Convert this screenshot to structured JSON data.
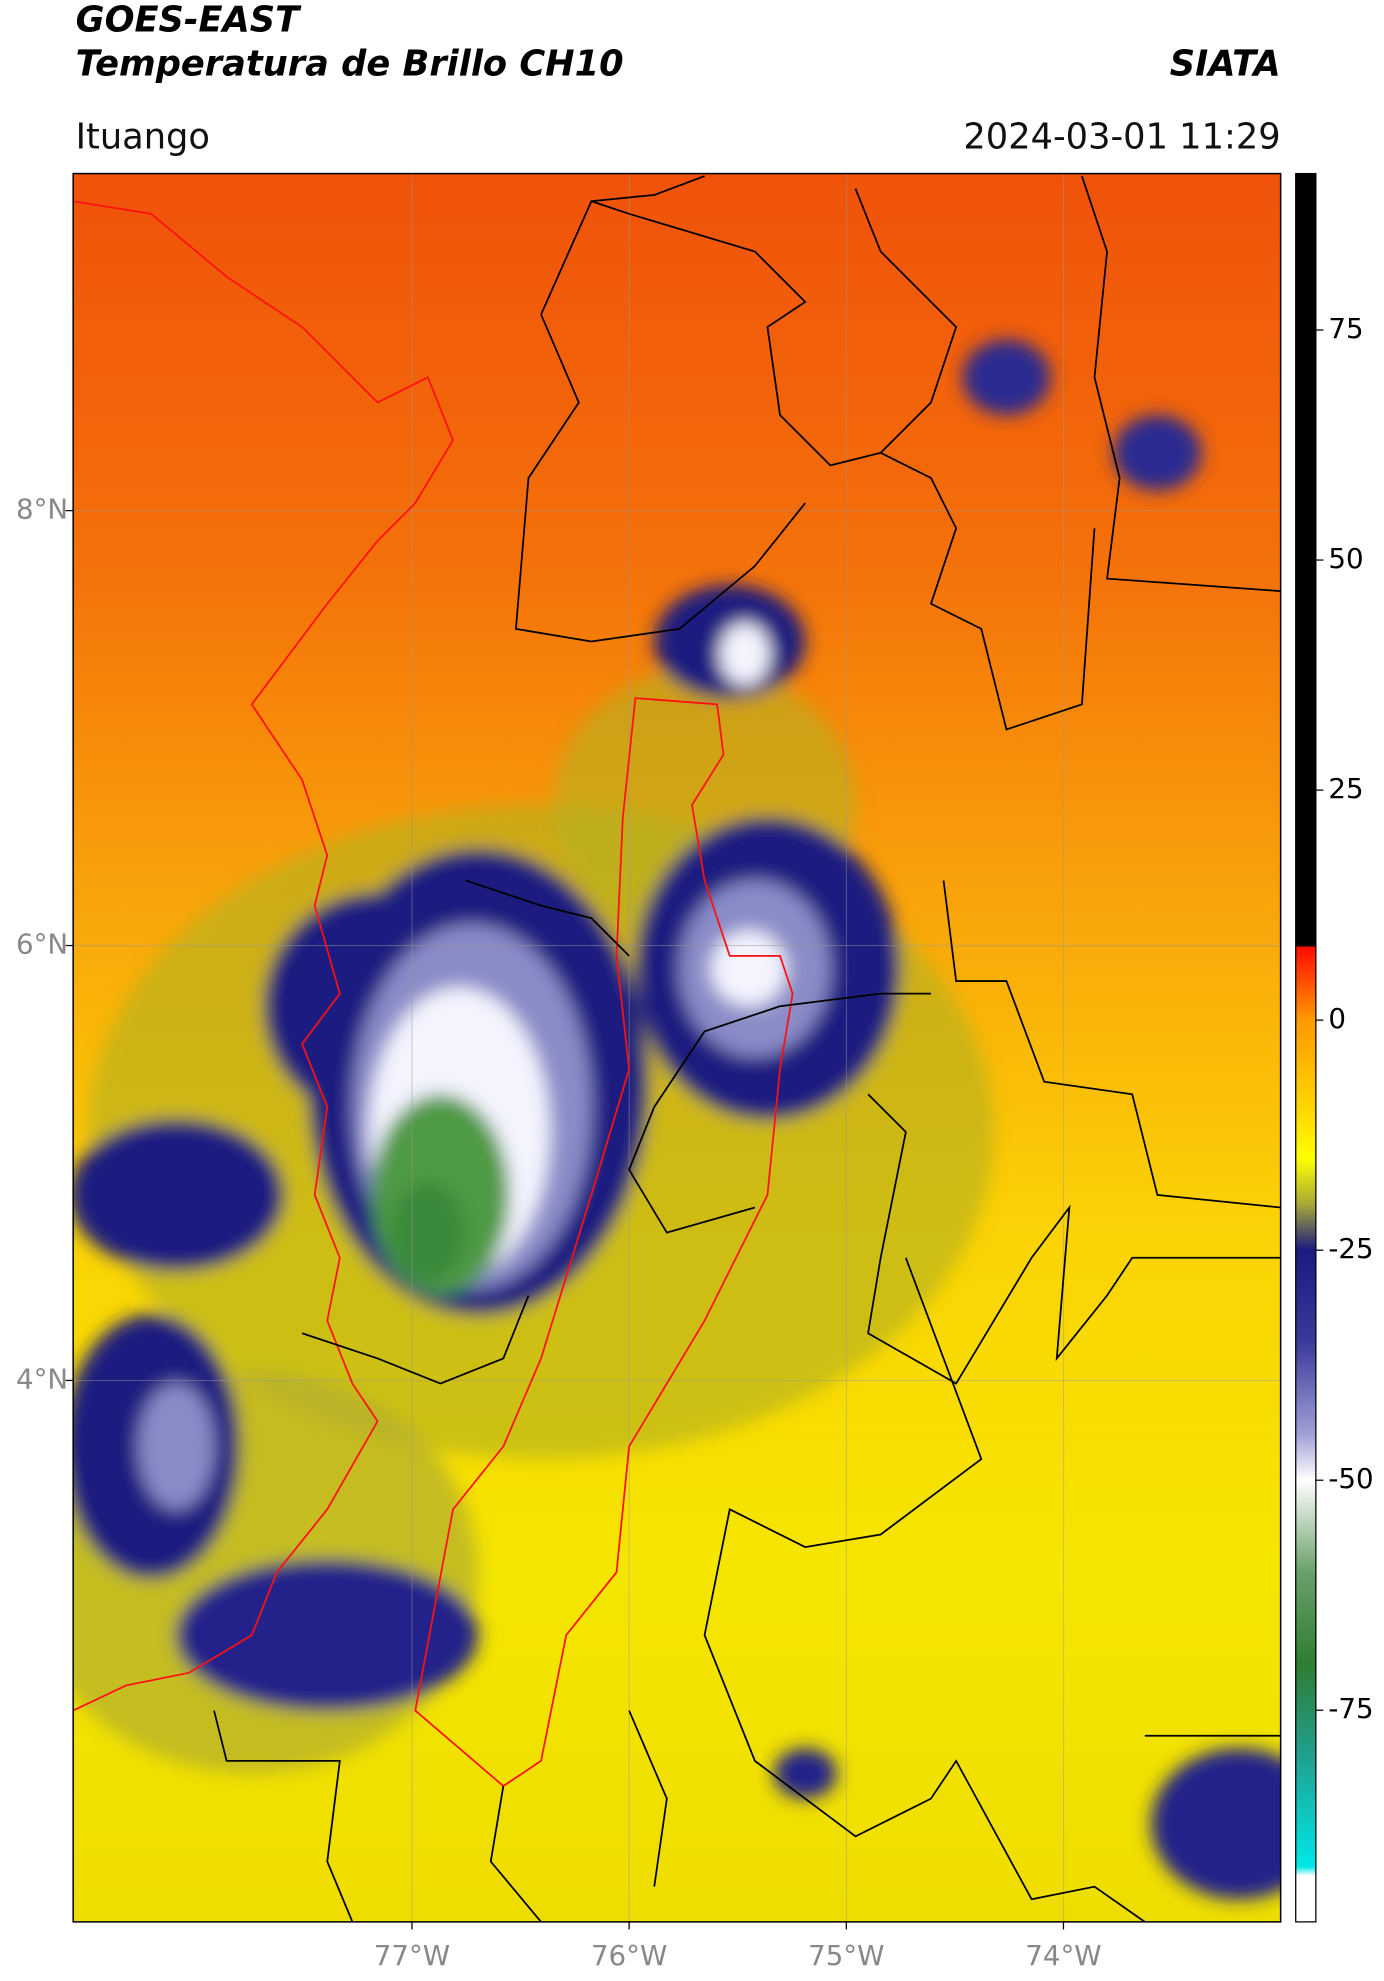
{
  "header": {
    "title": "GOES-EAST",
    "subtitle": "Temperatura de Brillo CH10",
    "source": "SIATA",
    "location": "Ituango",
    "timestamp": "2024-03-01 11:29"
  },
  "map": {
    "lonlim": [
      -78.56,
      -73.0
    ],
    "latlim": [
      1.51,
      9.55
    ],
    "grid": true,
    "lonticks": [
      {
        "value": -77,
        "label": "77°W"
      },
      {
        "value": -76,
        "label": "76°W"
      },
      {
        "value": -75,
        "label": "75°W"
      },
      {
        "value": -74,
        "label": "74°W"
      }
    ],
    "latticks": [
      {
        "value": 8,
        "label": "8°N"
      },
      {
        "value": 6,
        "label": "6°N"
      },
      {
        "value": 4,
        "label": "4°N"
      }
    ]
  },
  "colorbar": {
    "lim": [
      -98,
      92
    ],
    "ticks": [
      75,
      50,
      25,
      0,
      -25,
      -50,
      -75
    ],
    "stops": [
      {
        "value": 92,
        "color": "#000000"
      },
      {
        "value": 8,
        "color": "#000000"
      },
      {
        "value": 8,
        "color": "#ff0a00"
      },
      {
        "value": 0,
        "color": "#ff9a00"
      },
      {
        "value": -10,
        "color": "#ffd800"
      },
      {
        "value": -15,
        "color": "#ffff00"
      },
      {
        "value": -20,
        "color": "#a8a838"
      },
      {
        "value": -25,
        "color": "#1a1a80"
      },
      {
        "value": -35,
        "color": "#3a3a9a"
      },
      {
        "value": -45,
        "color": "#a0a0d8"
      },
      {
        "value": -50,
        "color": "#ffffff"
      },
      {
        "value": -60,
        "color": "#6aa06a"
      },
      {
        "value": -70,
        "color": "#2e7d32"
      },
      {
        "value": -80,
        "color": "#20a090"
      },
      {
        "value": -92,
        "color": "#00e8e8"
      },
      {
        "value": -93,
        "color": "#ffffff"
      },
      {
        "value": -98,
        "color": "#ffffff"
      }
    ]
  }
}
